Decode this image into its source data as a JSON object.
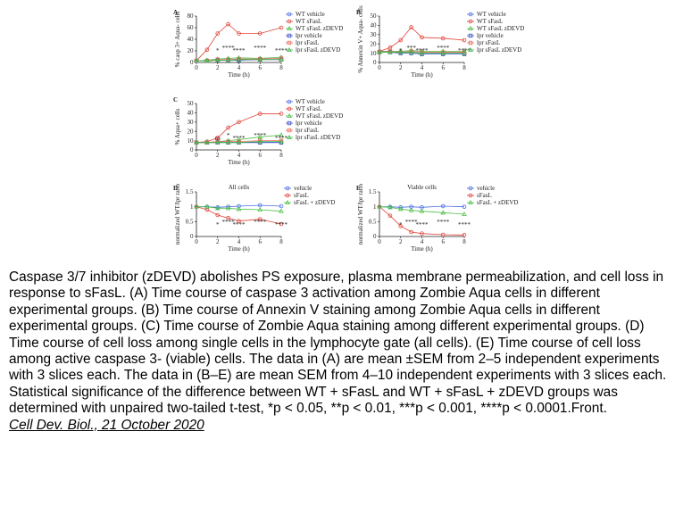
{
  "colors": {
    "wt_vehicle": "#4a6fe3",
    "wt_sfasl": "#e0463a",
    "wt_zdevd": "#4fbf4a",
    "lpr_vehicle": "#3a53c8",
    "lpr_sfasl": "#e86a5a",
    "lpr_zdevd": "#3fb84a"
  },
  "caption": {
    "text": "Caspase 3/7 inhibitor (zDEVD) abolishes PS exposure, plasma membrane permeabilization, and cell loss in response to sFasL. (A) Time course of caspase 3 activation among Zombie Aqua   cells in different experimental groups. (B) Time course of Annexin V staining among Zombie Aqua   cells in different experimental groups. (C) Time course of Zombie Aqua staining among different experimental groups. (D) Time course of cell loss among single cells in the lymphocyte gate (all cells). (E) Time course of cell loss among active caspase 3- (viable) cells. The data in (A) are mean ±SEM from 2–5 independent experiments with 3 slices each. The data in (B–E) are mean  SEM from 4–10 independent experiments with 3 slices each. Statistical significance of the difference between WT + sFasL and WT + sFasL + zDEVD groups was determined with unpaired two-tailed t-test, *p < 0.05, **p < 0.01, ***p < 0.001, ****p < 0.0001.Front.",
    "journal": "Cell Dev. Biol., 21 October 2020"
  },
  "chart_data": [
    {
      "id": "A",
      "type": "line",
      "panel_label": "A",
      "ylabel": "% casp 3+ Aqua- cells",
      "xlabel": "Time (h)",
      "x": [
        0,
        1,
        2,
        3,
        4,
        6,
        8
      ],
      "xlim": [
        0,
        8
      ],
      "ylim": [
        0,
        80
      ],
      "yticks": [
        0,
        20,
        40,
        60,
        80
      ],
      "xticks": [
        0,
        2,
        4,
        6,
        8
      ],
      "series": [
        {
          "name": "WT vehicle",
          "color": "#4a6fe3",
          "marker": "circle",
          "values": [
            3,
            3,
            4,
            4,
            4,
            5,
            5
          ]
        },
        {
          "name": "WT sFasL",
          "color": "#e0463a",
          "marker": "circle",
          "values": [
            3,
            22,
            50,
            66,
            50,
            50,
            60
          ]
        },
        {
          "name": "WT sFasL zDEVD",
          "color": "#4fbf4a",
          "marker": "triangle",
          "values": [
            3,
            4,
            6,
            7,
            8,
            7,
            9
          ]
        },
        {
          "name": "lpr vehicle",
          "color": "#3a53c8",
          "marker": "square",
          "values": [
            3,
            3,
            4,
            4,
            4,
            5,
            5
          ]
        },
        {
          "name": "lpr sFasL",
          "color": "#e86a5a",
          "marker": "square",
          "values": [
            3,
            3,
            5,
            5,
            6,
            6,
            7
          ]
        },
        {
          "name": "lpr sFasL zDEVD",
          "color": "#3fb84a",
          "marker": "triangle",
          "values": [
            3,
            3,
            4,
            4,
            5,
            5,
            5
          ]
        }
      ],
      "annotations": [
        "*",
        "****",
        "****",
        "****",
        "****"
      ]
    },
    {
      "id": "B",
      "type": "line",
      "panel_label": "B",
      "ylabel": "% Annexin V+ Aqua- cells",
      "xlabel": "Time (h)",
      "x": [
        0,
        1,
        2,
        3,
        4,
        6,
        8
      ],
      "xlim": [
        0,
        8
      ],
      "ylim": [
        0,
        50
      ],
      "yticks": [
        0,
        10,
        20,
        30,
        40,
        50
      ],
      "xticks": [
        0,
        2,
        4,
        6,
        8
      ],
      "series": [
        {
          "name": "WT vehicle",
          "color": "#4a6fe3",
          "marker": "circle",
          "values": [
            12,
            12,
            11,
            11,
            10,
            10,
            10
          ]
        },
        {
          "name": "WT sFasL",
          "color": "#e0463a",
          "marker": "circle",
          "values": [
            12,
            16,
            24,
            38,
            27,
            26,
            24
          ]
        },
        {
          "name": "WT sFasL zDEVD",
          "color": "#4fbf4a",
          "marker": "triangle",
          "values": [
            12,
            12,
            12,
            13,
            12,
            12,
            12
          ]
        },
        {
          "name": "lpr vehicle",
          "color": "#3a53c8",
          "marker": "square",
          "values": [
            11,
            11,
            10,
            10,
            9,
            9,
            9
          ]
        },
        {
          "name": "lpr sFasL",
          "color": "#e86a5a",
          "marker": "square",
          "values": [
            11,
            12,
            11,
            12,
            11,
            11,
            11
          ]
        },
        {
          "name": "lpr sFasL zDEVD",
          "color": "#3fb84a",
          "marker": "triangle",
          "values": [
            11,
            11,
            11,
            11,
            10,
            10,
            10
          ]
        }
      ],
      "annotations": [
        "*",
        "***",
        "****",
        "****",
        "****"
      ]
    },
    {
      "id": "C",
      "type": "line",
      "panel_label": "C",
      "ylabel": "% Aqua+ cells",
      "xlabel": "Time (h)",
      "x": [
        0,
        1,
        2,
        3,
        4,
        6,
        8
      ],
      "xlim": [
        0,
        8
      ],
      "ylim": [
        0,
        50
      ],
      "yticks": [
        0,
        10,
        20,
        30,
        40,
        50
      ],
      "xticks": [
        0,
        2,
        4,
        6,
        8
      ],
      "series": [
        {
          "name": "WT vehicle",
          "color": "#4a6fe3",
          "marker": "circle",
          "values": [
            8,
            8,
            8,
            8,
            8,
            8,
            8
          ]
        },
        {
          "name": "WT sFasL",
          "color": "#e0463a",
          "marker": "circle",
          "values": [
            8,
            9,
            13,
            24,
            30,
            39,
            39
          ]
        },
        {
          "name": "WT sFasL zDEVD",
          "color": "#4fbf4a",
          "marker": "triangle",
          "values": [
            8,
            8,
            9,
            10,
            11,
            14,
            16
          ]
        },
        {
          "name": "lpr vehicle",
          "color": "#3a53c8",
          "marker": "square",
          "values": [
            8,
            8,
            8,
            8,
            8,
            8,
            8
          ]
        },
        {
          "name": "lpr sFasL",
          "color": "#e86a5a",
          "marker": "square",
          "values": [
            8,
            8,
            9,
            9,
            9,
            10,
            10
          ]
        },
        {
          "name": "lpr sFasL zDEVD",
          "color": "#3fb84a",
          "marker": "triangle",
          "values": [
            8,
            8,
            8,
            8,
            8,
            9,
            9
          ]
        }
      ],
      "annotations": [
        "ns",
        "*",
        "****",
        "****",
        "****"
      ]
    },
    {
      "id": "D",
      "type": "line",
      "panel_label": "D",
      "title": "All cells",
      "ylabel": "normalized WT/lpr ratio",
      "xlabel": "Time (h)",
      "x": [
        0,
        1,
        2,
        3,
        4,
        6,
        8
      ],
      "xlim": [
        0,
        8
      ],
      "ylim": [
        0,
        1.5
      ],
      "yticks": [
        0,
        0.5,
        1.0,
        1.5
      ],
      "xticks": [
        0,
        2,
        4,
        6,
        8
      ],
      "series": [
        {
          "name": "vehicle",
          "color": "#4a6fe3",
          "marker": "circle",
          "values": [
            1.0,
            1.0,
            0.98,
            1.0,
            1.02,
            1.05,
            1.02
          ]
        },
        {
          "name": "sFasL",
          "color": "#e0463a",
          "marker": "circle",
          "values": [
            1.0,
            0.9,
            0.72,
            0.62,
            0.52,
            0.58,
            0.42
          ]
        },
        {
          "name": "sFasL + zDEVD",
          "color": "#4fbf4a",
          "marker": "triangle",
          "values": [
            1.0,
            1.0,
            0.95,
            0.95,
            0.92,
            0.9,
            0.85
          ]
        }
      ],
      "annotations": [
        "*",
        "****",
        "****",
        "****",
        "****"
      ]
    },
    {
      "id": "E",
      "type": "line",
      "panel_label": "E",
      "title": "Viable cells",
      "ylabel": "normalized WT/lpr ratio",
      "xlabel": "Time (h)",
      "x": [
        0,
        1,
        2,
        3,
        4,
        6,
        8
      ],
      "xlim": [
        0,
        8
      ],
      "ylim": [
        0,
        1.5
      ],
      "yticks": [
        0,
        0.5,
        1.0,
        1.5
      ],
      "xticks": [
        0,
        2,
        4,
        6,
        8
      ],
      "series": [
        {
          "name": "vehicle",
          "color": "#4a6fe3",
          "marker": "circle",
          "values": [
            1.0,
            1.0,
            0.98,
            1.0,
            0.98,
            1.02,
            1.0
          ]
        },
        {
          "name": "sFasL",
          "color": "#e0463a",
          "marker": "circle",
          "values": [
            1.0,
            0.7,
            0.35,
            0.15,
            0.1,
            0.06,
            0.05
          ]
        },
        {
          "name": "sFasL + zDEVD",
          "color": "#4fbf4a",
          "marker": "triangle",
          "values": [
            1.0,
            0.98,
            0.92,
            0.88,
            0.85,
            0.8,
            0.75
          ]
        }
      ],
      "annotations": [
        "*",
        "****",
        "****",
        "****",
        "****"
      ]
    }
  ]
}
